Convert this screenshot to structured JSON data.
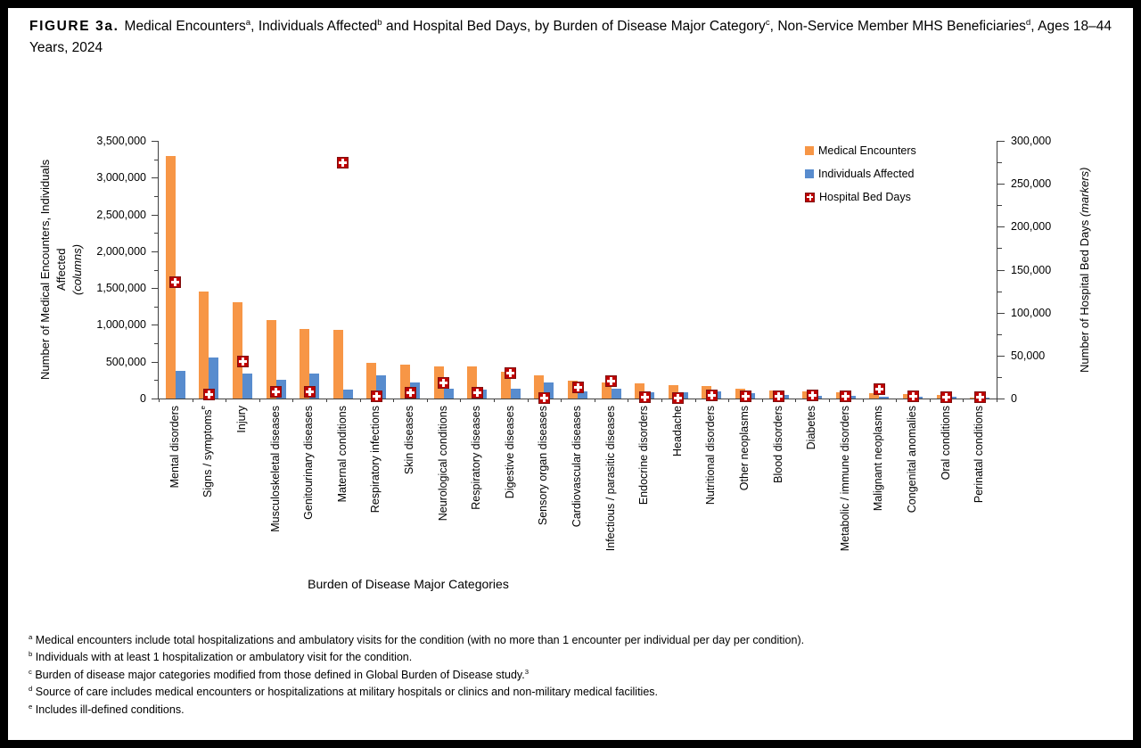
{
  "header": {
    "figure_label": "FIGURE 3a.",
    "title_segments": [
      {
        "t": "Medical Encounters"
      },
      {
        "t": "a",
        "sup": true
      },
      {
        "t": ", Individuals Affected"
      },
      {
        "t": "b",
        "sup": true
      },
      {
        "t": " and Hospital Bed Days, by Burden of Disease Major Category"
      },
      {
        "t": "c",
        "sup": true
      },
      {
        "t": ", Non-Service Member MHS Beneficiaries"
      },
      {
        "t": "d",
        "sup": true
      },
      {
        "t": ", Ages 18–44 Years, 2024"
      }
    ]
  },
  "chart_data": {
    "type": "bar",
    "title": "Medical Encounters, Individuals Affected and Hospital Bed Days, by Burden of Disease Major Category, Non-Service Member MHS Beneficiaries, Ages 18-44 Years, 2024",
    "categories": [
      "Mental disorders",
      "Signs / symptoms",
      "Injury",
      "Musculoskeletal diseases",
      "Genitourinary diseases",
      "Maternal conditions",
      "Respiratory infections",
      "Skin diseases",
      "Neurological conditions",
      "Respiratory diseases",
      "Digestive diseases",
      "Sensory organ diseases",
      "Cardiovascular diseases",
      "Infectious / parasitic diseases",
      "Endocrine disorders",
      "Headache",
      "Nutritional disorders",
      "Other neoplasms",
      "Blood disorders",
      "Diabetes",
      "Metabolic / immune disorders",
      "Malignant neoplasms",
      "Congenital anomalies",
      "Oral conditions",
      "Perinatal conditions"
    ],
    "category_superscripts": {
      "1": "e"
    },
    "series": [
      {
        "name": "Medical Encounters",
        "type": "bar",
        "axis": "left",
        "color": "#F79646",
        "values": [
          3300000,
          1450000,
          1310000,
          1070000,
          950000,
          930000,
          490000,
          460000,
          440000,
          430000,
          360000,
          320000,
          240000,
          215000,
          205000,
          180000,
          175000,
          135000,
          115000,
          100000,
          85000,
          70000,
          60000,
          50000,
          15000
        ]
      },
      {
        "name": "Individuals Affected",
        "type": "bar",
        "axis": "left",
        "color": "#588CCE",
        "values": [
          380000,
          560000,
          340000,
          250000,
          340000,
          120000,
          320000,
          220000,
          130000,
          120000,
          130000,
          220000,
          100000,
          130000,
          90000,
          90000,
          95000,
          70000,
          50000,
          40000,
          40000,
          25000,
          20000,
          25000,
          8000
        ]
      },
      {
        "name": "Hospital Bed Days",
        "type": "marker",
        "axis": "right",
        "color": "#C00000",
        "values": [
          135000,
          5000,
          43000,
          8000,
          8000,
          275000,
          3000,
          7000,
          18000,
          7000,
          30000,
          1000,
          13000,
          20000,
          2000,
          1000,
          4000,
          3000,
          3000,
          4000,
          3000,
          11000,
          3000,
          2000,
          2000
        ]
      }
    ],
    "xlabel": "Burden of Disease Major Categories",
    "ylabel_left": "Number of Medical Encounters, Individuals Affected",
    "ylabel_left_sub": "(columns)",
    "ylabel_right": "Number of Hospital Bed Days",
    "ylabel_right_sub": "(markers)",
    "left_axis": {
      "min": 0,
      "max": 3500000,
      "major_step": 500000,
      "minor_step": 250000
    },
    "right_axis": {
      "min": 0,
      "max": 300000,
      "major_step": 50000,
      "minor_step": 25000
    },
    "grid": false,
    "legend_position": "top-right-inside"
  },
  "footnotes": [
    {
      "mark": "a",
      "text": "Medical encounters include total hospitalizations and ambulatory visits for the condition (with no more than 1 encounter per individual per day per condition)."
    },
    {
      "mark": "b",
      "text": "Individuals with at least 1 hospitalization or ambulatory visit for the condition."
    },
    {
      "mark": "c",
      "text": "Burden of disease major categories modified from those defined in Global Burden of Disease study.",
      "sup_end": "3"
    },
    {
      "mark": "d",
      "text": "Source of care includes medical encounters or hospitalizations at military hospitals or clinics and non-military medical facilities."
    },
    {
      "mark": "e",
      "text": "Includes ill-defined conditions."
    }
  ]
}
